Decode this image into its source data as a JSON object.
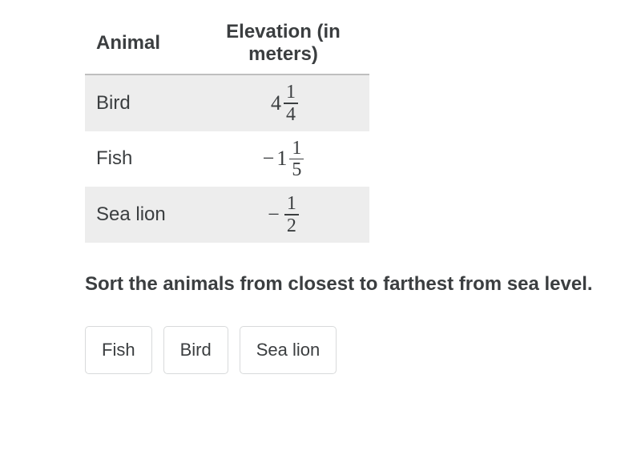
{
  "table": {
    "headers": {
      "animal": "Animal",
      "elevation": "Elevation (in meters)"
    },
    "rows": [
      {
        "animal": "Bird",
        "sign": "",
        "whole": "4",
        "num": "1",
        "den": "4",
        "shaded": true
      },
      {
        "animal": "Fish",
        "sign": "−",
        "whole": "1",
        "num": "1",
        "den": "5",
        "shaded": false
      },
      {
        "animal": "Sea lion",
        "sign": "−",
        "whole": "",
        "num": "1",
        "den": "2",
        "shaded": true
      }
    ]
  },
  "prompt": "Sort the animals from closest to farthest from sea level.",
  "chips": [
    "Fish",
    "Bird",
    "Sea lion"
  ],
  "colors": {
    "text": "#3b3e40",
    "row_shade": "#ededed",
    "header_rule": "#bfbfbf",
    "chip_border": "#d8dadb",
    "background": "#ffffff"
  }
}
